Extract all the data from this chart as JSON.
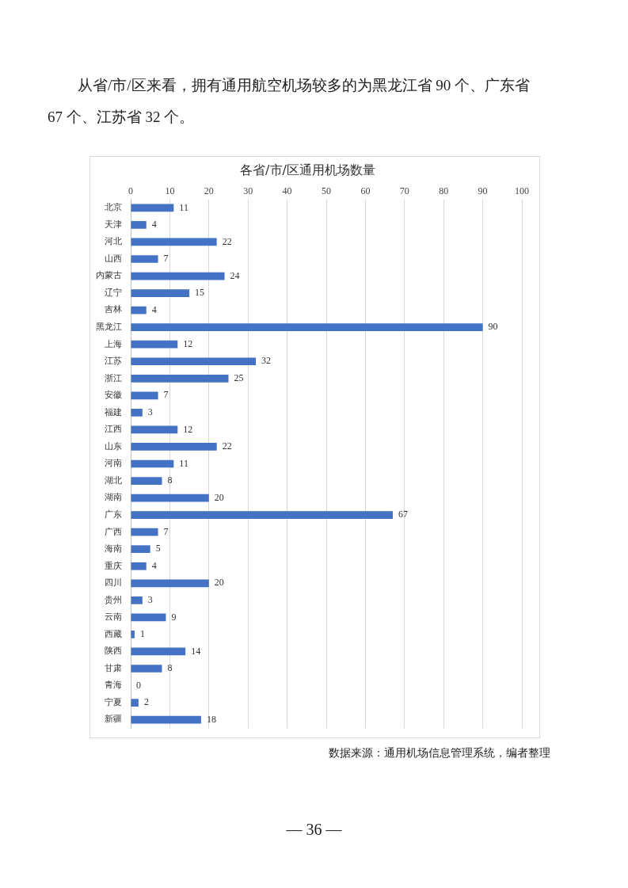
{
  "chart_data": {
    "type": "bar",
    "orientation": "horizontal",
    "title": "各省/市/区通用机场数量",
    "categories": [
      "北京",
      "天津",
      "河北",
      "山西",
      "内蒙古",
      "辽宁",
      "吉林",
      "黑龙江",
      "上海",
      "江苏",
      "浙江",
      "安徽",
      "福建",
      "江西",
      "山东",
      "河南",
      "湖北",
      "湖南",
      "广东",
      "广西",
      "海南",
      "重庆",
      "四川",
      "贵州",
      "云南",
      "西藏",
      "陕西",
      "甘肃",
      "青海",
      "宁夏",
      "新疆"
    ],
    "values": [
      11,
      4,
      22,
      7,
      24,
      15,
      4,
      90,
      12,
      32,
      25,
      7,
      3,
      12,
      22,
      11,
      8,
      20,
      67,
      7,
      5,
      4,
      20,
      3,
      9,
      1,
      14,
      8,
      0,
      2,
      18
    ],
    "color": "#4472c4",
    "xlim": [
      0,
      100
    ],
    "xticks": [
      0,
      10,
      20,
      30,
      40,
      50,
      60,
      70,
      80,
      90,
      100
    ],
    "grid": "x",
    "data_labels": true,
    "legend": false,
    "annotations": [
      "从省/市/区来看，拥有通用航空机场较多的为黑龙江省 90 个、广东省 67 个、江苏省 32 个。",
      "数据来源：通用机场信息管理系统，编者整理",
      "— 36 —"
    ]
  }
}
